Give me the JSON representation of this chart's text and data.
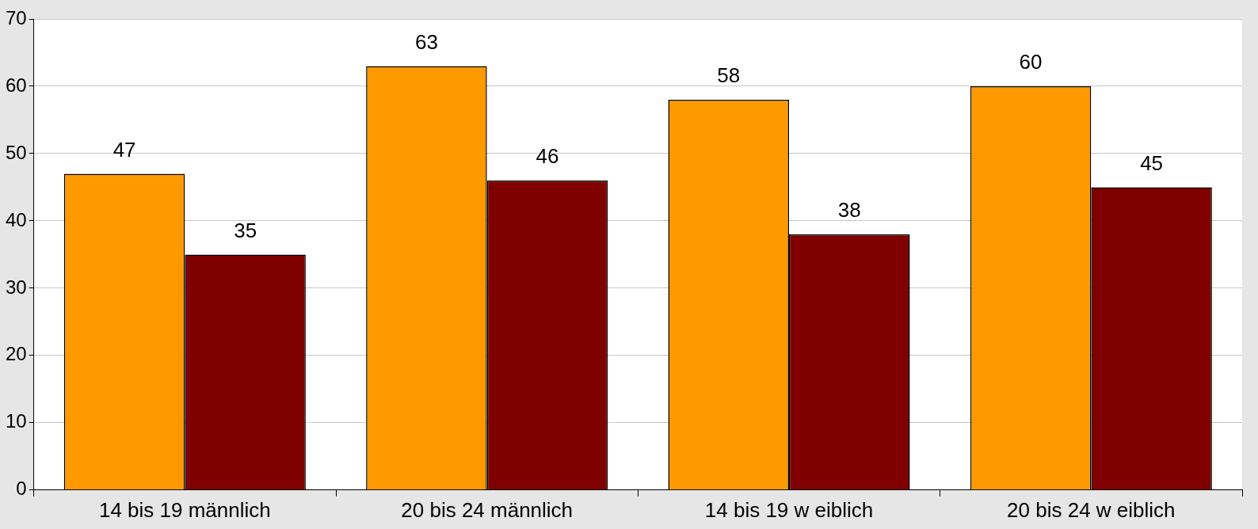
{
  "chart_data": {
    "type": "bar",
    "categories": [
      "14 bis 19 männlich",
      "20 bis 24 männlich",
      "14 bis 19 w eiblich",
      "20 bis 24 w eiblich"
    ],
    "series": [
      {
        "color": "#ff9900",
        "values": [
          47,
          63,
          58,
          60
        ]
      },
      {
        "color": "#800000",
        "values": [
          35,
          46,
          38,
          45
        ]
      }
    ],
    "ylim": [
      0,
      70
    ],
    "yticks": [
      0,
      10,
      20,
      30,
      40,
      50,
      60,
      70
    ],
    "grid": "y",
    "legend": false,
    "data_labels": true
  }
}
